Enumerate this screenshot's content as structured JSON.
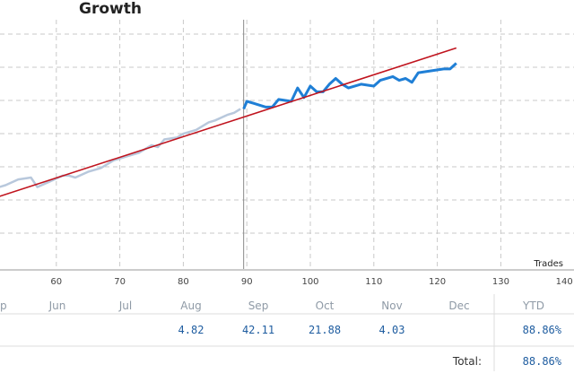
{
  "chart_data": {
    "type": "line",
    "title": "Growth",
    "xlabel": "Trades",
    "ylabel": "",
    "x_ticks": [
      50,
      60,
      70,
      80,
      90,
      100,
      110,
      120,
      130,
      140
    ],
    "x_tick_labels": [
      "",
      "60",
      "70",
      "80",
      "90",
      "100",
      "110",
      "120",
      "130",
      "140"
    ],
    "xlim": [
      50,
      140
    ],
    "ylim": [
      0,
      100
    ],
    "grid": true,
    "series": [
      {
        "color": "#b8c8dc",
        "x": [
          50,
          52,
          54,
          56,
          57,
          59,
          61,
          62,
          63,
          65,
          67,
          69,
          70,
          71,
          73,
          75,
          76,
          77,
          79,
          80,
          82,
          84,
          85,
          87,
          88,
          89
        ],
        "y": [
          53,
          54,
          55.5,
          56,
          53.5,
          55,
          56.5,
          56.5,
          56,
          57.5,
          58.5,
          60.5,
          61,
          61.5,
          62.5,
          64.5,
          64,
          66,
          66.5,
          67.5,
          68.5,
          70.5,
          71,
          72.5,
          73,
          74
        ]
      },
      {
        "color": "#1f7fd6",
        "x": [
          89.5,
          90,
          91,
          93,
          94,
          95,
          97,
          98,
          99,
          100,
          101,
          102,
          103,
          104,
          105,
          106,
          108,
          110,
          111,
          113,
          114,
          115,
          116,
          117,
          119,
          121,
          122,
          123
        ],
        "y": [
          74,
          76,
          75.5,
          74.5,
          74.5,
          76.5,
          76,
          79.5,
          77,
          80,
          78.5,
          78.5,
          80.5,
          82,
          80.5,
          79.5,
          80.5,
          80,
          81.5,
          82.5,
          81.5,
          82,
          81,
          83.5,
          84,
          84.5,
          84.5,
          86
        ]
      },
      {
        "color": "#c0141e",
        "x": [
          50,
          123
        ],
        "y": [
          50.5,
          90
        ]
      }
    ],
    "vline_x": 89.5
  },
  "table": {
    "months": [
      "Jun",
      "Jul",
      "Aug",
      "Sep",
      "Oct",
      "Nov",
      "Dec"
    ],
    "left_cut_month": "p",
    "values": [
      "",
      "",
      "4.82",
      "42.11",
      "21.88",
      "4.03",
      ""
    ],
    "ytd_label": "YTD",
    "ytd_value": "88.86%",
    "total_label": "Total:",
    "total_value": "88.86%"
  }
}
